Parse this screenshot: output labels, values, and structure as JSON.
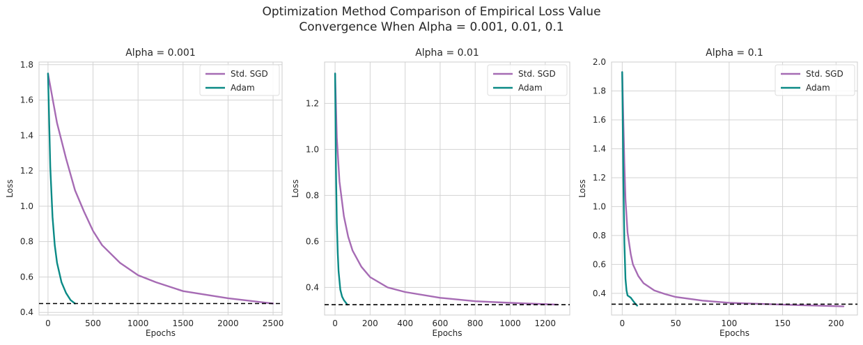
{
  "figure": {
    "suptitle_line1": "Optimization Method Comparison of Empirical Loss Value",
    "suptitle_line2": "Convergence When Alpha = 0.001, 0.01, 0.1"
  },
  "colors": {
    "sgd": "#a66bb4",
    "adam": "#0a8a86",
    "reference": "#000000",
    "grid": "#d3d3d3",
    "frame": "#cccccc"
  },
  "chart_data": [
    {
      "type": "line",
      "title": "Alpha = 0.001",
      "xlabel": "Epochs",
      "ylabel": "Loss",
      "xlim": [
        -100,
        2600
      ],
      "ylim": [
        0.385,
        1.815
      ],
      "xticks": [
        0,
        500,
        1000,
        1500,
        2000,
        2500
      ],
      "yticks": [
        0.4,
        0.6,
        0.8,
        1.0,
        1.2,
        1.4,
        1.6,
        1.8
      ],
      "xtick_labels": [
        "0",
        "500",
        "1000",
        "1500",
        "2000",
        "2500"
      ],
      "ytick_labels": [
        "0.4",
        "0.6",
        "0.8",
        "1.0",
        "1.2",
        "1.4",
        "1.6",
        "1.8"
      ],
      "reference_line_y": 0.45,
      "grid": true,
      "legend_position": "top-right",
      "series": [
        {
          "name": "Std. SGD",
          "x": [
            0,
            100,
            200,
            300,
            400,
            500,
            600,
            800,
            1000,
            1200,
            1500,
            2000,
            2500
          ],
          "y": [
            1.75,
            1.47,
            1.27,
            1.09,
            0.97,
            0.86,
            0.78,
            0.68,
            0.61,
            0.57,
            0.52,
            0.48,
            0.45
          ]
        },
        {
          "name": "Adam",
          "x": [
            0,
            25,
            50,
            75,
            100,
            150,
            200,
            250,
            300
          ],
          "y": [
            1.75,
            1.22,
            0.94,
            0.78,
            0.68,
            0.57,
            0.51,
            0.47,
            0.45
          ]
        }
      ]
    },
    {
      "type": "line",
      "title": "Alpha = 0.01",
      "xlabel": "Epochs",
      "ylabel": "Loss",
      "xlim": [
        -60,
        1340
      ],
      "ylim": [
        0.28,
        1.38
      ],
      "xticks": [
        0,
        200,
        400,
        600,
        800,
        1000,
        1200
      ],
      "yticks": [
        0.4,
        0.6,
        0.8,
        1.0,
        1.2
      ],
      "xtick_labels": [
        "0",
        "200",
        "400",
        "600",
        "800",
        "1000",
        "1200"
      ],
      "ytick_labels": [
        "0.4",
        "0.6",
        "0.8",
        "1.0",
        "1.2"
      ],
      "reference_line_y": 0.325,
      "grid": true,
      "legend_position": "top-right",
      "series": [
        {
          "name": "Std. SGD",
          "x": [
            0,
            10,
            25,
            50,
            75,
            100,
            150,
            200,
            300,
            400,
            600,
            800,
            1000,
            1270
          ],
          "y": [
            1.33,
            1.05,
            0.86,
            0.71,
            0.62,
            0.56,
            0.49,
            0.445,
            0.4,
            0.38,
            0.355,
            0.34,
            0.333,
            0.325
          ]
        },
        {
          "name": "Adam",
          "x": [
            0,
            5,
            10,
            15,
            20,
            30,
            40,
            50,
            60,
            70
          ],
          "y": [
            1.33,
            0.92,
            0.68,
            0.55,
            0.47,
            0.39,
            0.36,
            0.345,
            0.335,
            0.325
          ]
        }
      ]
    },
    {
      "type": "line",
      "title": "Alpha = 0.1",
      "xlabel": "Epochs",
      "ylabel": "Loss",
      "xlim": [
        -10,
        220
      ],
      "ylim": [
        0.25,
        2.0
      ],
      "xticks": [
        0,
        50,
        100,
        150,
        200
      ],
      "yticks": [
        0.4,
        0.6,
        0.8,
        1.0,
        1.2,
        1.4,
        1.6,
        1.8,
        2.0
      ],
      "xtick_labels": [
        "0",
        "50",
        "100",
        "150",
        "200"
      ],
      "ytick_labels": [
        "0.4",
        "0.6",
        "0.8",
        "1.0",
        "1.2",
        "1.4",
        "1.6",
        "1.8",
        "2.0"
      ],
      "reference_line_y": 0.325,
      "grid": true,
      "legend_position": "top-right",
      "series": [
        {
          "name": "Std. SGD",
          "x": [
            0,
            1,
            2,
            3,
            5,
            8,
            10,
            15,
            20,
            30,
            40,
            50,
            75,
            100,
            150,
            207
          ],
          "y": [
            1.93,
            1.6,
            1.3,
            1.05,
            0.82,
            0.67,
            0.6,
            0.52,
            0.47,
            0.42,
            0.395,
            0.375,
            0.35,
            0.335,
            0.322,
            0.31
          ]
        },
        {
          "name": "Adam",
          "x": [
            0,
            1,
            2,
            3,
            4,
            5,
            6,
            8,
            10,
            12,
            14
          ],
          "y": [
            1.93,
            1.2,
            0.75,
            0.5,
            0.42,
            0.385,
            0.38,
            0.37,
            0.35,
            0.33,
            0.315
          ]
        }
      ]
    }
  ]
}
